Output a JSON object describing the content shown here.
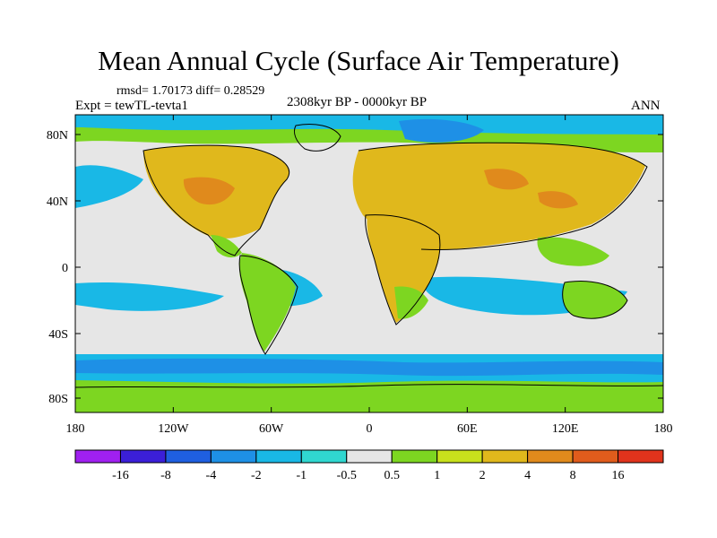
{
  "title": "Mean Annual Cycle (Surface Air Temperature)",
  "stats": "rmsd= 1.70173 diff= 0.28529",
  "experiment": "Expt = tewTL-tevta1",
  "period": "2308kyr BP - 0000kyr BP",
  "season": "ANN",
  "lat_labels": [
    "80N",
    "40N",
    "0",
    "40S",
    "80S"
  ],
  "lon_labels": [
    "180",
    "120W",
    "60W",
    "0",
    "60E",
    "120E",
    "180"
  ],
  "colorbar": {
    "labels": [
      "-16",
      "-8",
      "-4",
      "-2",
      "-1",
      "-0.5",
      "0.5",
      "1",
      "2",
      "4",
      "8",
      "16"
    ],
    "colors": [
      "#a020f0",
      "#3b1fd8",
      "#1f5fe0",
      "#1e90e6",
      "#19b8e6",
      "#30d7d0",
      "#e6e6e6",
      "#7dd621",
      "#c8e01c",
      "#e0b81c",
      "#e08a1c",
      "#e05c1c",
      "#e0331c"
    ]
  },
  "map_colors": {
    "ocean": "#e6e6e6",
    "land_warm": "#e0b81c",
    "land_hot": "#e08a1c",
    "mild": "#7dd621",
    "cool": "#19b8e6",
    "cold": "#1e90e6",
    "coast": "#000000"
  }
}
